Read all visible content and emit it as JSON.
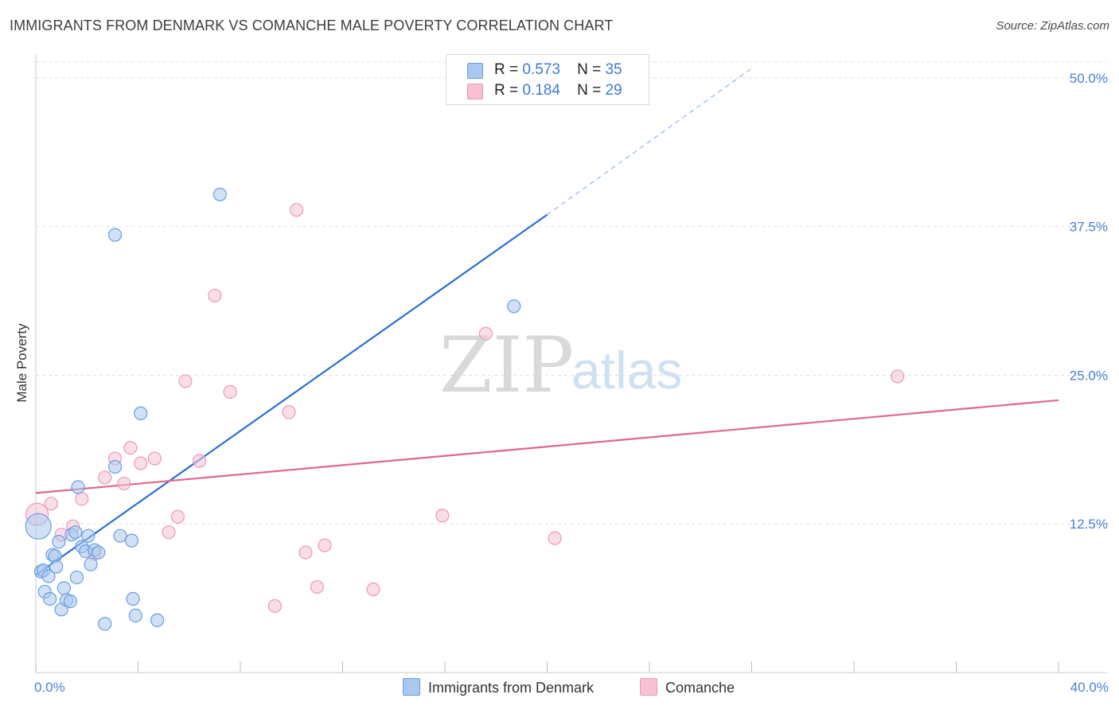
{
  "title": "IMMIGRANTS FROM DENMARK VS COMANCHE MALE POVERTY CORRELATION CHART",
  "source": "Source: ZipAtlas.com",
  "watermark": {
    "zip": "ZIP",
    "atlas": "atlas"
  },
  "legend": {
    "rows": [
      {
        "r_label": "R =",
        "r_value": "0.573",
        "n_label": "N =",
        "n_value": "35"
      },
      {
        "r_label": "R =",
        "r_value": "0.184",
        "n_label": "N =",
        "n_value": "29"
      }
    ]
  },
  "bottom_legend": {
    "series1": "Immigrants from Denmark",
    "series2": "Comanche"
  },
  "colors": {
    "blue_fill": "#a9c8f0",
    "blue_stroke": "#6a9de0",
    "blue_line": "#2a6fd0",
    "pink_fill": "#f7c1d3",
    "pink_stroke": "#e89ab5",
    "pink_line": "#e06690",
    "grid": "#dddddd",
    "tick_text": "#4a7fd0"
  },
  "chart_data": {
    "type": "scatter",
    "title": "IMMIGRANTS FROM DENMARK VS COMANCHE MALE POVERTY CORRELATION CHART",
    "xlabel": "",
    "ylabel": "Male Poverty",
    "xlim": [
      0,
      40
    ],
    "ylim": [
      0,
      52
    ],
    "x_tick_labels": [
      "0.0%",
      "40.0%"
    ],
    "y_ticks": [
      12.5,
      25.0,
      37.5,
      50.0
    ],
    "y_tick_labels": [
      "12.5%",
      "25.0%",
      "37.5%",
      "50.0%"
    ],
    "series": [
      {
        "name": "Immigrants from Denmark",
        "R": 0.573,
        "N": 35,
        "trend": {
          "x0": 0,
          "y0": 8.2,
          "x1": 20,
          "y1": 38.5,
          "dash_to_x": 28,
          "dash_to_y": 50.8
        },
        "points": [
          {
            "x": 0.1,
            "y": 12.3,
            "r": 16
          },
          {
            "x": 0.2,
            "y": 8.5
          },
          {
            "x": 0.3,
            "y": 8.6
          },
          {
            "x": 0.35,
            "y": 6.8
          },
          {
            "x": 0.5,
            "y": 8.1
          },
          {
            "x": 0.55,
            "y": 6.2
          },
          {
            "x": 0.65,
            "y": 9.9
          },
          {
            "x": 0.75,
            "y": 9.8
          },
          {
            "x": 0.8,
            "y": 8.9
          },
          {
            "x": 0.9,
            "y": 11.0
          },
          {
            "x": 1.0,
            "y": 5.3
          },
          {
            "x": 1.1,
            "y": 7.1
          },
          {
            "x": 1.2,
            "y": 6.1
          },
          {
            "x": 1.35,
            "y": 6.0
          },
          {
            "x": 1.4,
            "y": 11.6
          },
          {
            "x": 1.55,
            "y": 11.8
          },
          {
            "x": 1.6,
            "y": 8.0
          },
          {
            "x": 1.65,
            "y": 15.6
          },
          {
            "x": 1.8,
            "y": 10.6
          },
          {
            "x": 1.95,
            "y": 10.2
          },
          {
            "x": 2.05,
            "y": 11.5
          },
          {
            "x": 2.15,
            "y": 9.1
          },
          {
            "x": 2.3,
            "y": 10.3
          },
          {
            "x": 2.45,
            "y": 10.1
          },
          {
            "x": 2.7,
            "y": 4.1
          },
          {
            "x": 3.1,
            "y": 36.8
          },
          {
            "x": 3.1,
            "y": 17.3
          },
          {
            "x": 3.3,
            "y": 11.5
          },
          {
            "x": 3.75,
            "y": 11.1
          },
          {
            "x": 3.8,
            "y": 6.2
          },
          {
            "x": 3.9,
            "y": 4.8
          },
          {
            "x": 4.1,
            "y": 21.8
          },
          {
            "x": 4.75,
            "y": 4.4
          },
          {
            "x": 7.2,
            "y": 40.2
          },
          {
            "x": 18.7,
            "y": 30.8
          }
        ]
      },
      {
        "name": "Comanche",
        "R": 0.184,
        "N": 29,
        "trend": {
          "x0": 0,
          "y0": 15.1,
          "x1": 40,
          "y1": 22.9
        },
        "points": [
          {
            "x": 0.05,
            "y": 13.3,
            "r": 14
          },
          {
            "x": 0.6,
            "y": 14.2
          },
          {
            "x": 1.0,
            "y": 11.6
          },
          {
            "x": 1.45,
            "y": 12.3
          },
          {
            "x": 1.8,
            "y": 14.6
          },
          {
            "x": 2.3,
            "y": 10.0
          },
          {
            "x": 2.7,
            "y": 16.4
          },
          {
            "x": 3.1,
            "y": 18.0
          },
          {
            "x": 3.45,
            "y": 15.9
          },
          {
            "x": 3.7,
            "y": 18.9
          },
          {
            "x": 4.1,
            "y": 17.6
          },
          {
            "x": 4.65,
            "y": 18.0
          },
          {
            "x": 5.2,
            "y": 11.8
          },
          {
            "x": 5.55,
            "y": 13.1
          },
          {
            "x": 5.85,
            "y": 24.5
          },
          {
            "x": 6.4,
            "y": 17.8
          },
          {
            "x": 7.0,
            "y": 31.7
          },
          {
            "x": 7.6,
            "y": 23.6
          },
          {
            "x": 9.35,
            "y": 5.6
          },
          {
            "x": 9.9,
            "y": 21.9
          },
          {
            "x": 10.2,
            "y": 38.9
          },
          {
            "x": 10.55,
            "y": 10.1
          },
          {
            "x": 11.0,
            "y": 7.2
          },
          {
            "x": 11.3,
            "y": 10.7
          },
          {
            "x": 13.2,
            "y": 7.0
          },
          {
            "x": 15.9,
            "y": 13.2
          },
          {
            "x": 17.6,
            "y": 28.5
          },
          {
            "x": 20.3,
            "y": 11.3
          },
          {
            "x": 33.7,
            "y": 24.9
          }
        ]
      }
    ]
  }
}
